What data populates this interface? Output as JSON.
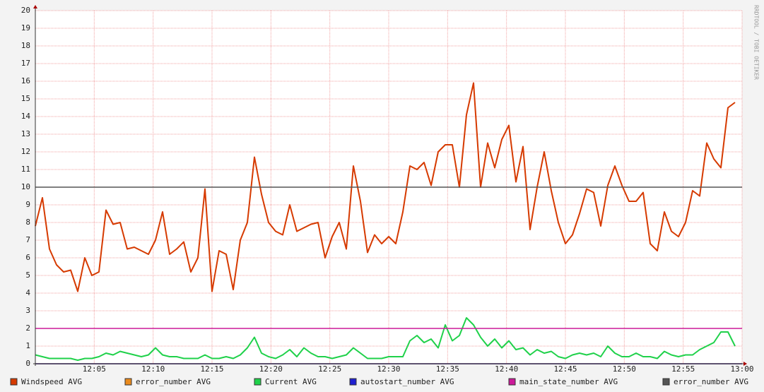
{
  "chart_data": {
    "type": "line",
    "watermark": "RRDTOOL / TOBI OETIKER",
    "x": [
      0,
      0.6,
      1.2,
      1.8,
      2.4,
      3,
      3.6,
      4.2,
      4.8,
      5.4,
      6,
      6.6,
      7.2,
      7.8,
      8.4,
      9,
      9.6,
      10.2,
      10.8,
      11.4,
      12,
      12.6,
      13.2,
      13.8,
      14.4,
      15,
      15.6,
      16.2,
      16.8,
      17.4,
      18,
      18.6,
      19.2,
      19.8,
      20.4,
      21,
      21.6,
      22.2,
      22.8,
      23.4,
      24,
      24.6,
      25.2,
      25.8,
      26.4,
      27,
      27.6,
      28.2,
      28.8,
      29.4,
      30,
      30.6,
      31.2,
      31.8,
      32.4,
      33,
      33.6,
      34.2,
      34.8,
      35.4,
      36,
      36.6,
      37.2,
      37.8,
      38.4,
      39,
      39.6,
      40.2,
      40.8,
      41.4,
      42,
      42.6,
      43.2,
      43.8,
      44.4,
      45,
      45.6,
      46.2,
      46.8,
      47.4,
      48,
      48.6,
      49.2,
      49.8,
      50.4,
      51,
      51.6,
      52.2,
      52.8,
      53.4,
      54,
      54.6,
      55.2,
      55.8,
      56.4,
      57,
      57.6,
      58.2,
      58.8,
      59.4
    ],
    "series": [
      {
        "name": "error_number AVG",
        "color": "#ea8a1c",
        "x": [
          0,
          60
        ],
        "values": [
          0,
          0
        ]
      },
      {
        "name": "autostart_number AVG",
        "color": "#2020d0",
        "x": [
          0,
          60
        ],
        "values": [
          0,
          0
        ]
      },
      {
        "name": "Windspeed AVG",
        "color": "#d63a00",
        "values": [
          7.8,
          9.4,
          6.5,
          5.6,
          5.2,
          5.3,
          4.1,
          6.0,
          5.0,
          5.2,
          8.7,
          7.9,
          8.0,
          6.5,
          6.6,
          6.4,
          6.2,
          7.0,
          8.6,
          6.2,
          6.5,
          6.9,
          5.2,
          6.0,
          9.9,
          4.1,
          6.4,
          6.2,
          4.2,
          7.0,
          8.0,
          11.7,
          9.6,
          8.0,
          7.5,
          7.3,
          9.0,
          7.5,
          7.7,
          7.9,
          8.0,
          6.0,
          7.2,
          8.0,
          6.5,
          11.2,
          9.2,
          6.3,
          7.3,
          6.8,
          7.2,
          6.8,
          8.6,
          11.2,
          11.0,
          11.4,
          10.1,
          12.0,
          12.4,
          12.4,
          10.0,
          14.1,
          15.9,
          10.0,
          12.5,
          11.1,
          12.7,
          13.5,
          10.3,
          12.3,
          7.6,
          10.0,
          12.0,
          9.8,
          8.0,
          6.8,
          7.3,
          8.5,
          9.9,
          9.7,
          7.8,
          10.1,
          11.2,
          10.1,
          9.2,
          9.2,
          9.7,
          6.8,
          6.4,
          8.6,
          7.5,
          7.2,
          8.0,
          9.8,
          9.5,
          12.5,
          11.6,
          11.1,
          14.5,
          14.8
        ]
      },
      {
        "name": "Current AVG",
        "color": "#1fd14a",
        "values": [
          0.5,
          0.4,
          0.3,
          0.3,
          0.3,
          0.3,
          0.2,
          0.3,
          0.3,
          0.4,
          0.6,
          0.5,
          0.7,
          0.6,
          0.5,
          0.4,
          0.5,
          0.9,
          0.5,
          0.4,
          0.4,
          0.3,
          0.3,
          0.3,
          0.5,
          0.3,
          0.3,
          0.4,
          0.3,
          0.5,
          0.9,
          1.5,
          0.6,
          0.4,
          0.3,
          0.5,
          0.8,
          0.4,
          0.9,
          0.6,
          0.4,
          0.4,
          0.3,
          0.4,
          0.5,
          0.9,
          0.6,
          0.3,
          0.3,
          0.3,
          0.4,
          0.4,
          0.4,
          1.3,
          1.6,
          1.2,
          1.4,
          0.9,
          2.2,
          1.3,
          1.6,
          2.6,
          2.2,
          1.5,
          1.0,
          1.4,
          0.9,
          1.3,
          0.8,
          0.9,
          0.5,
          0.8,
          0.6,
          0.7,
          0.4,
          0.3,
          0.5,
          0.6,
          0.5,
          0.6,
          0.4,
          1.0,
          0.6,
          0.4,
          0.4,
          0.6,
          0.4,
          0.4,
          0.3,
          0.7,
          0.5,
          0.4,
          0.5,
          0.5,
          0.8,
          1.0,
          1.2,
          1.8,
          1.8,
          1.0
        ]
      },
      {
        "name": "main_state_number AVG",
        "color": "#cc1a99",
        "x": [
          0,
          60
        ],
        "values": [
          2,
          2
        ]
      },
      {
        "name": "error_number AVG",
        "color": "#555555",
        "x": [
          0,
          60
        ],
        "values": [
          10,
          10
        ]
      }
    ],
    "legend_order": [
      2,
      0,
      3,
      1,
      4,
      5
    ],
    "xlim": [
      0,
      60
    ],
    "xticks": [
      {
        "value": 5,
        "label": "12:05"
      },
      {
        "value": 10,
        "label": "12:10"
      },
      {
        "value": 15,
        "label": "12:15"
      },
      {
        "value": 20,
        "label": "12:20"
      },
      {
        "value": 25,
        "label": "12:25"
      },
      {
        "value": 30,
        "label": "12:30"
      },
      {
        "value": 35,
        "label": "12:35"
      },
      {
        "value": 40,
        "label": "12:40"
      },
      {
        "value": 45,
        "label": "12:45"
      },
      {
        "value": 50,
        "label": "12:50"
      },
      {
        "value": 55,
        "label": "12:55"
      },
      {
        "value": 60,
        "label": "13:00"
      }
    ],
    "ylim": [
      0,
      20
    ],
    "yticks": [
      0,
      1,
      2,
      3,
      4,
      5,
      6,
      7,
      8,
      9,
      10,
      11,
      12,
      13,
      14,
      15,
      16,
      17,
      18,
      19,
      20
    ],
    "grid": true
  }
}
